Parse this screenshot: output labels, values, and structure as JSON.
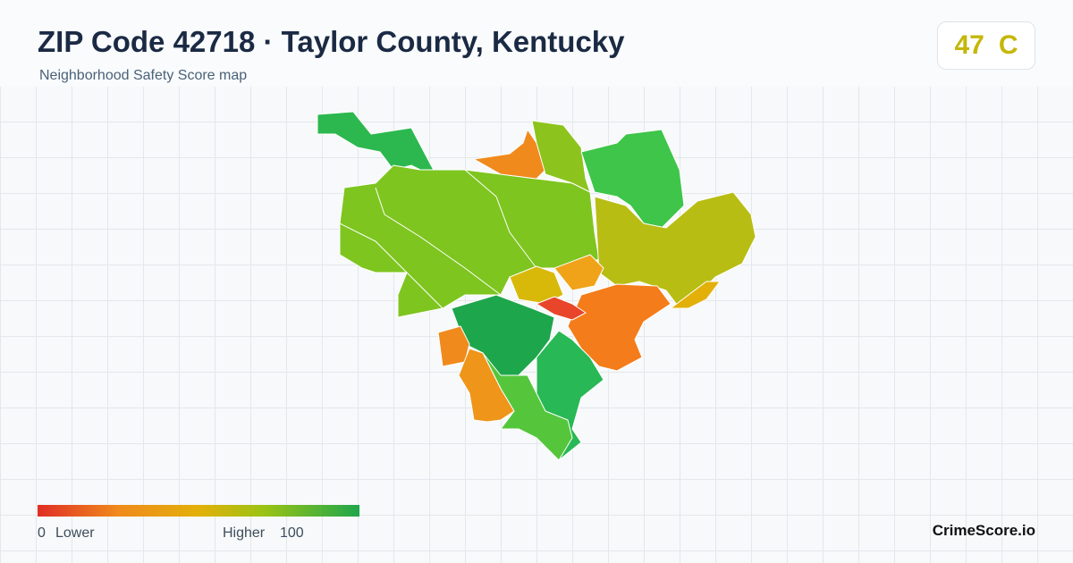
{
  "header": {
    "title": "ZIP Code 42718 · Taylor County, Kentucky",
    "subtitle": "Neighborhood Safety Score map"
  },
  "score": {
    "value": 47,
    "grade": "C"
  },
  "legend": {
    "min": 0,
    "low_label": "Lower",
    "high_label": "Higher",
    "max": 100
  },
  "brand": "CrimeScore.io"
}
